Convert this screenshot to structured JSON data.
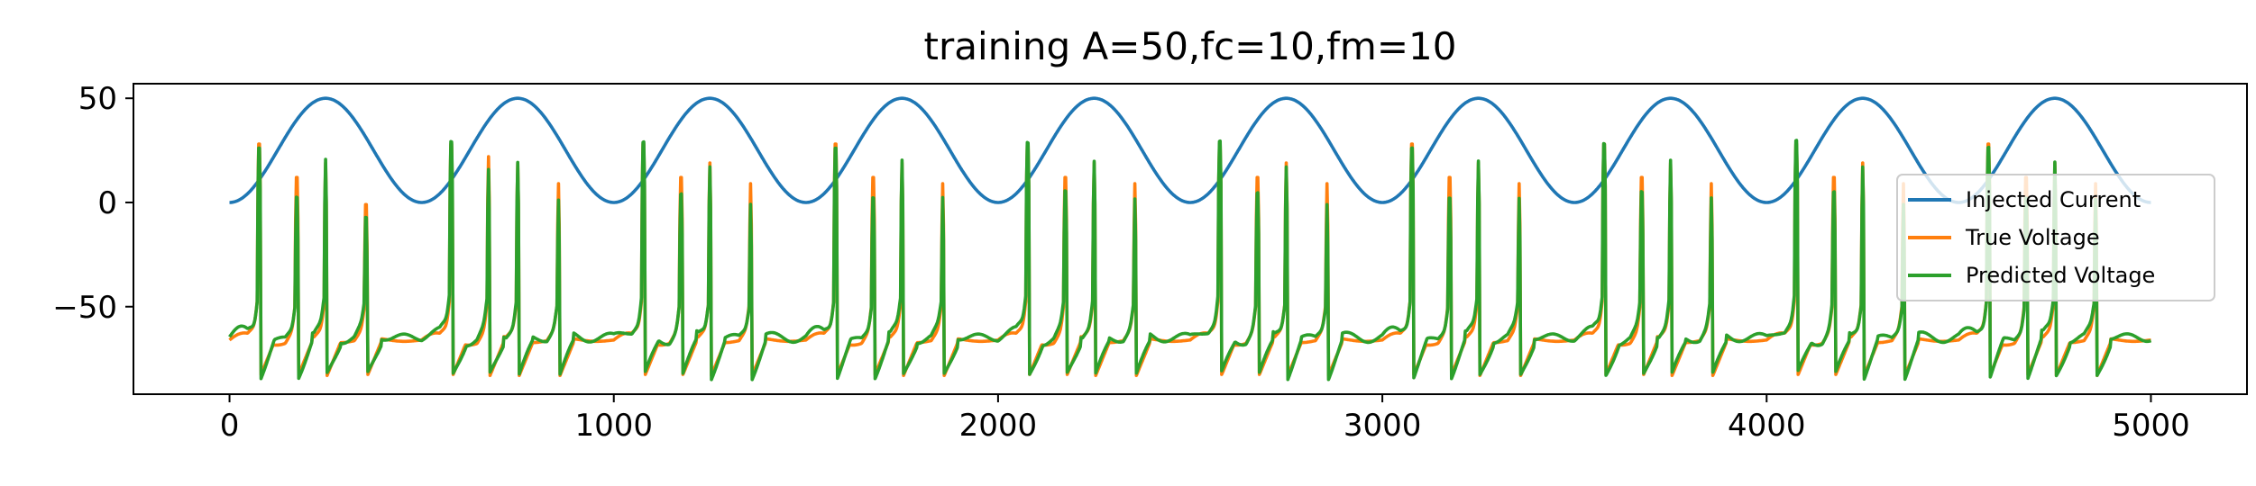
{
  "chart_data": {
    "type": "line",
    "title": "training A=50,fc=10,fm=10",
    "xlabel": "",
    "ylabel": "",
    "xlim": [
      -250,
      5250
    ],
    "ylim": [
      -92,
      57
    ],
    "x_ticks": [
      0,
      1000,
      2000,
      3000,
      4000,
      5000
    ],
    "x_tick_labels": [
      "0",
      "1000",
      "2000",
      "3000",
      "4000",
      "5000"
    ],
    "y_ticks": [
      50,
      0,
      -50
    ],
    "y_tick_labels": [
      "50",
      "0",
      "−50"
    ],
    "grid": false,
    "legend_position": "right",
    "legend": [
      "Injected Current",
      "True Voltage",
      "Predicted Voltage"
    ],
    "x_range": [
      0,
      5000
    ],
    "current": {
      "amplitude": 50,
      "period": 500,
      "min": 0,
      "max": 50
    },
    "voltage": {
      "resting": -66,
      "spike_peaks": [
        38,
        22,
        19,
        9
      ],
      "spike_trough": -83,
      "spike_times": [
        77,
        175,
        250,
        355,
        577,
        674,
        750,
        856,
        1077,
        1175,
        1250,
        1356,
        1577,
        1675,
        1750,
        1856,
        2077,
        2175,
        2250,
        2356,
        2577,
        2675,
        2750,
        2856,
        3077,
        3175,
        3250,
        3356,
        3577,
        3675,
        3750,
        3856,
        4077,
        4175,
        4250,
        4356,
        4577,
        4675,
        4750,
        4856
      ]
    },
    "series": [
      {
        "name": "Injected Current",
        "color": "#1f77b4"
      },
      {
        "name": "True Voltage",
        "color": "#ff7f0e"
      },
      {
        "name": "Predicted Voltage",
        "color": "#2ca02c"
      }
    ]
  }
}
